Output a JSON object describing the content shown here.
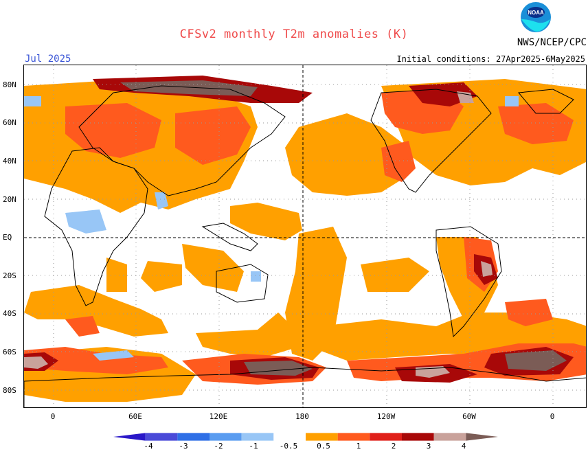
{
  "header": {
    "title": "CFSv2 monthly T2m anomalies (K)",
    "month": "Jul 2025",
    "initial_conditions": "Initial conditions: 27Apr2025-6May2025",
    "agency": "NWS/NCEP/CPC",
    "logo_text": "NOAA"
  },
  "axes": {
    "lat_labels": [
      "80N",
      "60N",
      "40N",
      "20N",
      "EQ",
      "20S",
      "40S",
      "60S",
      "80S"
    ],
    "lon_labels": [
      "0",
      "60E",
      "120E",
      "180",
      "120W",
      "60W",
      "0"
    ]
  },
  "colorbar": {
    "labels": [
      "-4",
      "-3",
      "-2",
      "-1",
      "-0.5",
      "0.5",
      "1",
      "2",
      "3",
      "4"
    ],
    "colors": [
      "#2a18c8",
      "#4a4ad8",
      "#2f6fe6",
      "#5a9cf0",
      "#98c6f6",
      "#ffffff",
      "#ffa000",
      "#ff5a1e",
      "#e0201a",
      "#a80808",
      "#c9a29b",
      "#7b5c56"
    ]
  },
  "map_colors": {
    "warm_light": "#ffa000",
    "warm_mid": "#ff5a1e",
    "warm_strong": "#b00a0a",
    "warm_extreme": "#7b5c56",
    "warm_pink": "#c9a29b",
    "cool_light": "#98c6f6"
  }
}
